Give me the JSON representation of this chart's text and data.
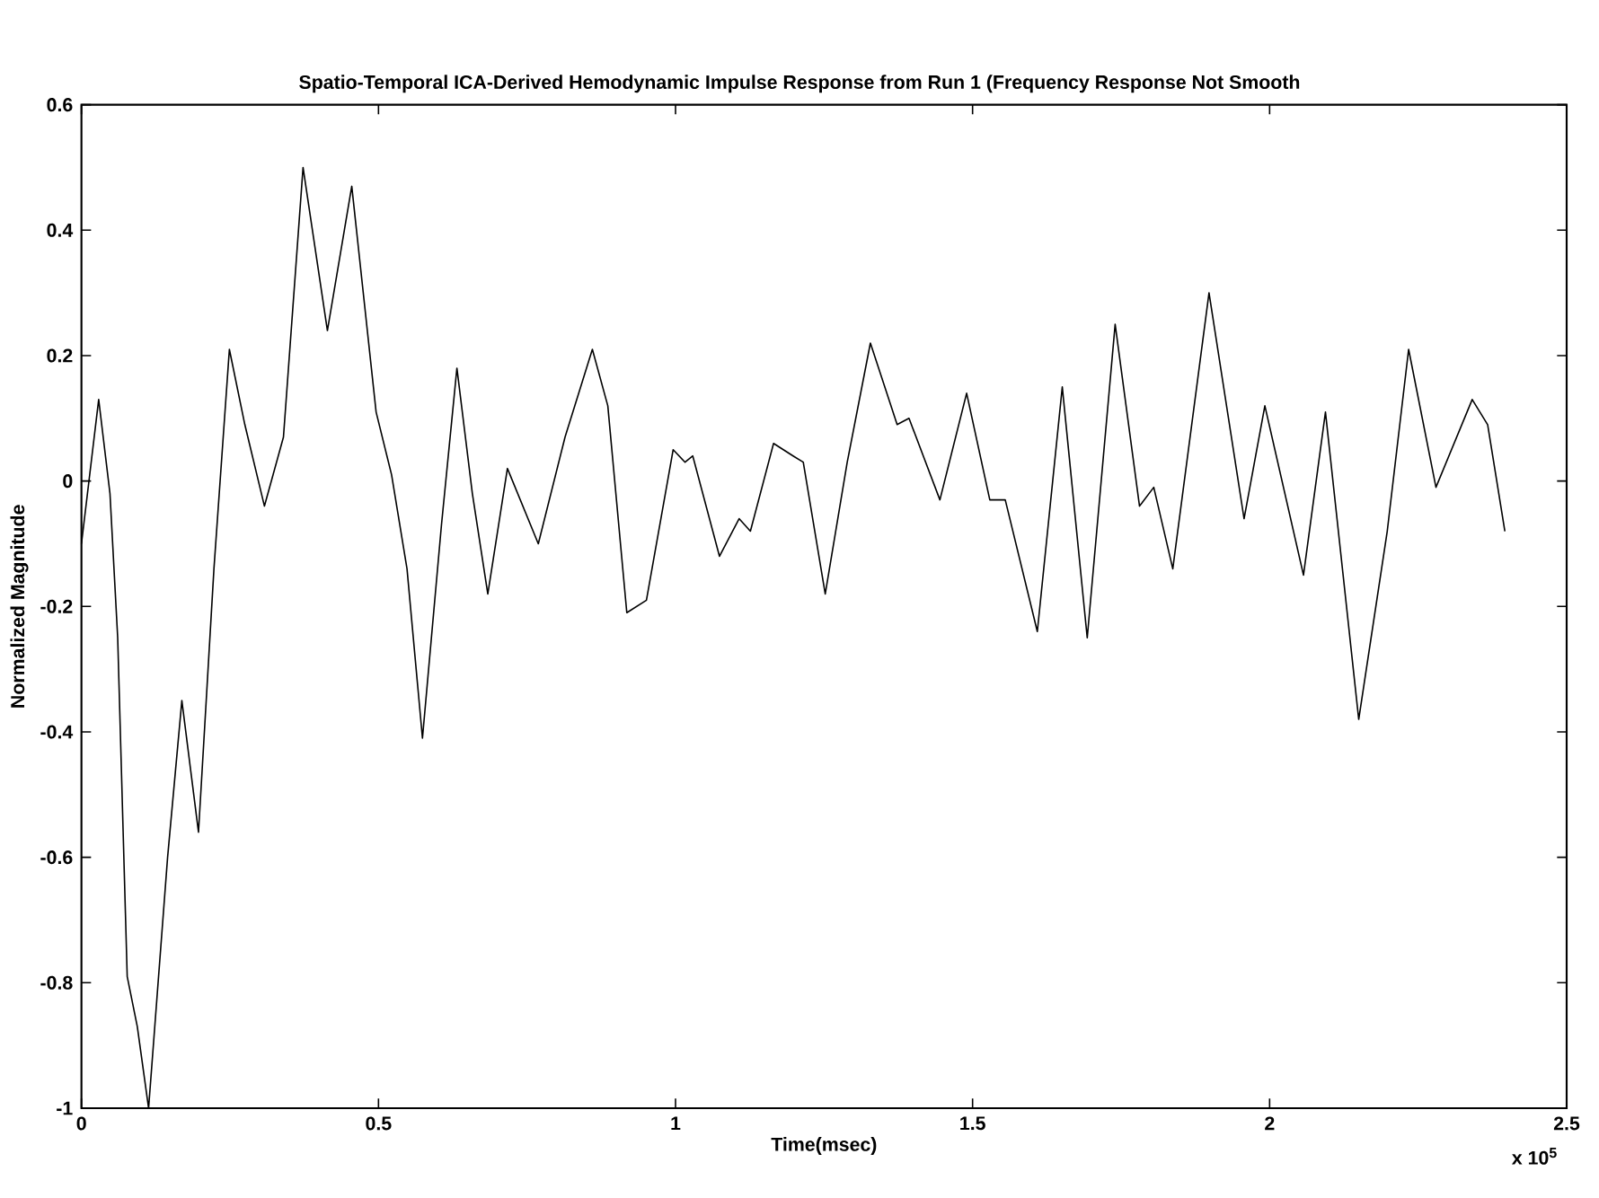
{
  "chart_data": {
    "type": "line",
    "title": "Spatio-Temporal ICA-Derived Hemodynamic Impulse Response from Run 1 (Frequency Response Not Smooth",
    "xlabel": "Time(msec)",
    "ylabel": "Normalized Magnitude",
    "annotations": [
      "x 10$^{5}$"
    ],
    "xlim": [
      0,
      2.5
    ],
    "ylim": [
      -1,
      0.6
    ],
    "xticks": [
      0,
      0.5,
      1,
      1.5,
      2,
      2.5
    ],
    "yticks": [
      -1,
      -0.8,
      -0.6,
      -0.4,
      -0.2,
      0,
      0.2,
      0.4,
      0.6
    ],
    "series": [
      {
        "color": "#000000",
        "x": [
          0,
          0.029,
          0.048,
          0.061,
          0.077,
          0.094,
          0.113,
          0.145,
          0.169,
          0.197,
          0.223,
          0.249,
          0.275,
          0.308,
          0.34,
          0.373,
          0.414,
          0.455,
          0.496,
          0.522,
          0.548,
          0.574,
          0.606,
          0.632,
          0.658,
          0.684,
          0.717,
          0.769,
          0.814,
          0.86,
          0.886,
          0.918,
          0.951,
          0.996,
          1.016,
          1.029,
          1.074,
          1.107,
          1.126,
          1.165,
          1.198,
          1.215,
          1.252,
          1.289,
          1.328,
          1.373,
          1.393,
          1.445,
          1.49,
          1.529,
          1.555,
          1.609,
          1.651,
          1.693,
          1.74,
          1.781,
          1.805,
          1.837,
          1.898,
          1.957,
          1.992,
          2.057,
          2.094,
          2.15,
          2.198,
          2.234,
          2.28,
          2.341,
          2.367,
          2.396
        ],
        "values": [
          -0.1,
          0.13,
          -0.02,
          -0.25,
          -0.79,
          -0.87,
          -1.0,
          -0.6,
          -0.35,
          -0.56,
          -0.14,
          0.21,
          0.09,
          -0.04,
          0.07,
          0.5,
          0.24,
          0.47,
          0.11,
          0.01,
          -0.14,
          -0.41,
          -0.07,
          0.18,
          -0.02,
          -0.18,
          0.02,
          -0.1,
          0.07,
          0.21,
          0.12,
          -0.21,
          -0.19,
          0.05,
          0.03,
          0.04,
          -0.12,
          -0.06,
          -0.08,
          0.06,
          0.04,
          0.03,
          -0.18,
          0.03,
          0.22,
          0.09,
          0.1,
          -0.03,
          0.14,
          -0.03,
          -0.03,
          -0.24,
          0.15,
          -0.25,
          0.25,
          -0.04,
          -0.01,
          -0.14,
          0.3,
          -0.06,
          0.12,
          -0.15,
          0.11,
          -0.38,
          -0.08,
          0.21,
          -0.01,
          0.13,
          0.09,
          -0.08
        ]
      }
    ]
  }
}
